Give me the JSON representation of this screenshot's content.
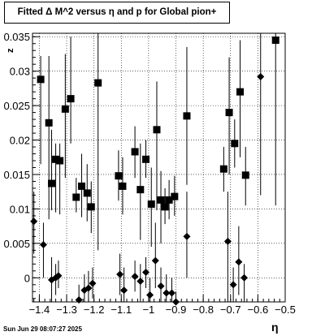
{
  "title": "Fitted Δ M^2 versus η and p for Global pion+",
  "footer": "Sun Jun 29 08:07:27 2025",
  "chart_data": {
    "type": "scatter",
    "title": "Fitted Δ M^2 versus η and p for Global pion+",
    "xlabel": "η",
    "ylabel": "z",
    "xlim": [
      -1.425,
      -0.5
    ],
    "ylim": [
      -0.0035,
      0.0355
    ],
    "grid": true,
    "x_ticks": [
      -1.4,
      -1.3,
      -1.2,
      -1.1,
      -1.0,
      -0.9,
      -0.8,
      -0.7,
      -0.6,
      -0.5
    ],
    "x_tick_labels": [
      "−1.4",
      "−1.3",
      "−1.2",
      "−1.1",
      "−1",
      "−0.9",
      "−0.8",
      "−0.7",
      "−0.6",
      "−0.5"
    ],
    "y_ticks": [
      0,
      0.005,
      0.01,
      0.015,
      0.02,
      0.025,
      0.03,
      0.035
    ],
    "y_tick_labels": [
      "0",
      "0.005",
      "0.01",
      "0.015",
      "0.02",
      "0.025",
      "0.03",
      "0.035"
    ],
    "series": [
      {
        "marker": "square",
        "points": [
          {
            "x": -1.395,
            "y": 0.0288,
            "lo": 0.0165,
            "hi": 0.0322
          },
          {
            "x": -1.365,
            "y": 0.0225,
            "lo": 0.0085,
            "hi": 0.0322
          },
          {
            "x": -1.355,
            "y": 0.0137,
            "lo": 0.0098,
            "hi": 0.0215
          },
          {
            "x": -1.34,
            "y": 0.0172,
            "lo": 0.0095,
            "hi": 0.0195
          },
          {
            "x": -1.325,
            "y": 0.017,
            "lo": 0.0092,
            "hi": 0.0195
          },
          {
            "x": -1.305,
            "y": 0.0245,
            "lo": 0.0145,
            "hi": 0.0325
          },
          {
            "x": -1.285,
            "y": 0.026,
            "lo": 0.0195,
            "hi": 0.035
          },
          {
            "x": -1.265,
            "y": 0.0117,
            "lo": 0.0095,
            "hi": 0.0145
          },
          {
            "x": -1.245,
            "y": 0.0133,
            "lo": 0.0088,
            "hi": 0.018
          },
          {
            "x": -1.225,
            "y": 0.0123,
            "lo": 0.0082,
            "hi": 0.0165
          },
          {
            "x": -1.21,
            "y": 0.0103,
            "lo": 0.0065,
            "hi": 0.014
          },
          {
            "x": -1.185,
            "y": 0.0283,
            "lo": 0.004,
            "hi": 0.0355
          },
          {
            "x": -1.11,
            "y": 0.0148,
            "lo": 0.0112,
            "hi": 0.0185
          },
          {
            "x": -1.095,
            "y": 0.0133,
            "lo": 0.0092,
            "hi": 0.0175
          },
          {
            "x": -1.05,
            "y": 0.0183,
            "lo": 0.0145,
            "hi": 0.022
          },
          {
            "x": -1.03,
            "y": 0.0128,
            "lo": 0.0055,
            "hi": 0.0195
          },
          {
            "x": -1.01,
            "y": 0.0172,
            "lo": 0.0145,
            "hi": 0.02
          },
          {
            "x": -0.99,
            "y": 0.0107,
            "lo": 0.0045,
            "hi": 0.016
          },
          {
            "x": -0.97,
            "y": 0.0215,
            "lo": 0.0098,
            "hi": 0.0285
          },
          {
            "x": -0.955,
            "y": 0.0113,
            "lo": 0.005,
            "hi": 0.0155
          },
          {
            "x": -0.94,
            "y": 0.0103,
            "lo": 0.0078,
            "hi": 0.013
          },
          {
            "x": -0.925,
            "y": 0.0113,
            "lo": 0.0085,
            "hi": 0.0142
          },
          {
            "x": -0.905,
            "y": 0.0118,
            "lo": 0.009,
            "hi": 0.0148
          },
          {
            "x": -0.86,
            "y": 0.0235,
            "lo": 0.0135,
            "hi": 0.0335
          },
          {
            "x": -0.725,
            "y": 0.0158,
            "lo": 0.0125,
            "hi": 0.019
          },
          {
            "x": -0.705,
            "y": 0.024,
            "lo": 0.015,
            "hi": 0.032
          },
          {
            "x": -0.685,
            "y": 0.0195,
            "lo": 0.016,
            "hi": 0.023
          },
          {
            "x": -0.665,
            "y": 0.027,
            "lo": 0.0175,
            "hi": 0.0345
          },
          {
            "x": -0.645,
            "y": 0.0149,
            "lo": 0.0105,
            "hi": 0.019
          },
          {
            "x": -0.535,
            "y": 0.0345,
            "lo": 0.0105,
            "hi": 0.0355
          }
        ]
      },
      {
        "marker": "diamond",
        "points": [
          {
            "x": -1.42,
            "y": 0.0082,
            "lo": 0.0035,
            "hi": 0.0125
          },
          {
            "x": -1.385,
            "y": 0.0048,
            "lo": 0.0,
            "hi": 0.008
          },
          {
            "x": -1.355,
            "y": -0.0003,
            "lo": -0.0035,
            "hi": 0.003
          },
          {
            "x": -1.34,
            "y": 0.0,
            "lo": -0.0025,
            "hi": 0.002
          },
          {
            "x": -1.33,
            "y": 0.0003,
            "lo": -0.0015,
            "hi": 0.0025
          },
          {
            "x": -1.255,
            "y": -0.0032,
            "lo": -0.0035,
            "hi": -0.001
          },
          {
            "x": -1.235,
            "y": -0.0018,
            "lo": -0.0035,
            "hi": 0.0005
          },
          {
            "x": -1.22,
            "y": -0.0015,
            "lo": -0.0035,
            "hi": 0.001
          },
          {
            "x": -1.205,
            "y": -0.0008,
            "lo": -0.003,
            "hi": 0.0015
          },
          {
            "x": -1.105,
            "y": 0.0005,
            "lo": -0.0025,
            "hi": 0.0035
          },
          {
            "x": -1.09,
            "y": -0.0018,
            "lo": -0.0035,
            "hi": 0.0015
          },
          {
            "x": -1.05,
            "y": 0.0002,
            "lo": -0.002,
            "hi": 0.0025
          },
          {
            "x": -1.03,
            "y": -0.0005,
            "lo": -0.0035,
            "hi": 0.002
          },
          {
            "x": -1.01,
            "y": 0.0008,
            "lo": -0.0015,
            "hi": 0.003
          },
          {
            "x": -0.995,
            "y": -0.0025,
            "lo": -0.0035,
            "hi": 0.0
          },
          {
            "x": -0.975,
            "y": 0.0025,
            "lo": -0.0015,
            "hi": 0.008
          },
          {
            "x": -0.955,
            "y": -0.0012,
            "lo": -0.0035,
            "hi": 0.0015
          },
          {
            "x": -0.935,
            "y": -0.0022,
            "lo": -0.0035,
            "hi": 0.0005
          },
          {
            "x": -0.915,
            "y": -0.0022,
            "lo": -0.0035,
            "hi": 0.0
          },
          {
            "x": -0.9,
            "y": -0.0035,
            "lo": -0.0035,
            "hi": -0.002
          },
          {
            "x": -0.86,
            "y": 0.006,
            "lo": 0.0,
            "hi": 0.0125
          },
          {
            "x": -0.71,
            "y": 0.0053,
            "lo": -0.0035,
            "hi": 0.0125
          },
          {
            "x": -0.69,
            "y": -0.001,
            "lo": -0.0035,
            "hi": 0.0015
          },
          {
            "x": -0.67,
            "y": 0.0023,
            "lo": -0.0025,
            "hi": 0.0075
          },
          {
            "x": -0.65,
            "y": 0.0,
            "lo": -0.0035,
            "hi": 0.002
          },
          {
            "x": -0.59,
            "y": 0.0292,
            "lo": 0.012,
            "hi": 0.0355
          }
        ]
      }
    ]
  }
}
